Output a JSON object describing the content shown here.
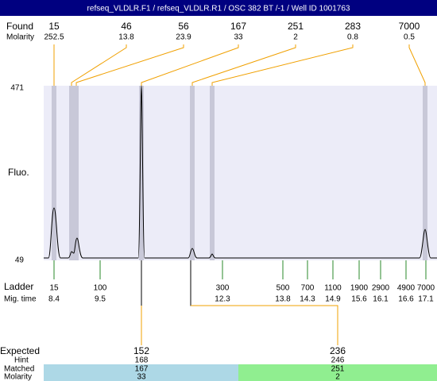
{
  "header": {
    "title": "refseq_VLDLR.F1 / refseq_VLDLR.R1 / OSC 382 BT  /-1 / Well ID 1001763"
  },
  "found": {
    "label": "Found",
    "sublabel": "Molarity",
    "items": [
      {
        "size": 15,
        "molarity": 252.5
      },
      {
        "size": 46,
        "molarity": 13.8
      },
      {
        "size": 56,
        "molarity": 23.9
      },
      {
        "size": 167,
        "molarity": 33
      },
      {
        "size": 251,
        "molarity": 2
      },
      {
        "size": 283,
        "molarity": 0.8
      },
      {
        "size": 7000,
        "molarity": 0.5
      }
    ]
  },
  "fluo_axis": {
    "label": "Fluo.",
    "top": 471,
    "bottom": 49
  },
  "ladder": {
    "label": "Ladder",
    "sublabel": "Mig. time",
    "items": [
      {
        "size": 15,
        "time": 8.4
      },
      {
        "size": 100,
        "time": 9.5
      },
      {
        "size": 300,
        "time": 12.3
      },
      {
        "size": 500,
        "time": 13.8
      },
      {
        "size": 700,
        "time": 14.3
      },
      {
        "size": 1100,
        "time": 14.9
      },
      {
        "size": 1900,
        "time": 15.6
      },
      {
        "size": 2900,
        "time": 16.1
      },
      {
        "size": 4900,
        "time": 16.6
      },
      {
        "size": 7000,
        "time": 17.1
      }
    ]
  },
  "expected": {
    "labels": [
      "Expected",
      "Hint",
      "Matched",
      "Molarity"
    ],
    "items": [
      {
        "expected": 152,
        "hint": 168,
        "matched": 167,
        "molarity": 33
      },
      {
        "expected": 236,
        "hint": 246,
        "matched": 251,
        "molarity": 2
      }
    ]
  }
}
